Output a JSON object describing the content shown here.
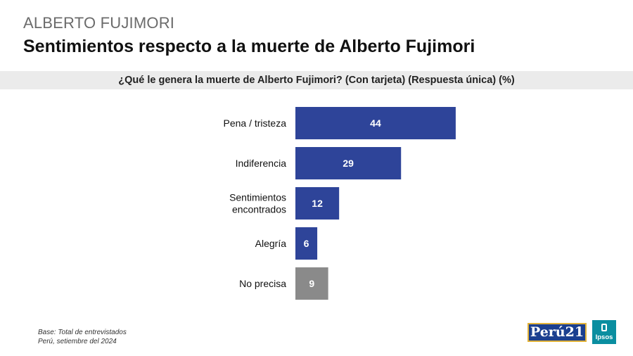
{
  "header": {
    "kicker": "ALBERTO FUJIMORI",
    "title": "Sentimientos respecto a la muerte de Alberto Fujimori",
    "question": "¿Qué le genera la muerte de Alberto Fujimori? (Con tarjeta) (Respuesta única) (%)"
  },
  "chart_data": {
    "type": "bar",
    "orientation": "horizontal",
    "title": "",
    "xlabel": "",
    "ylabel": "",
    "categories": [
      "Pena / tristeza",
      "Indiferencia",
      "Sentimientos encontrados",
      "Alegría",
      "No precisa"
    ],
    "values": [
      44,
      29,
      12,
      6,
      9
    ],
    "colors": [
      "#2e4499",
      "#2e4499",
      "#2e4499",
      "#2e4499",
      "#8a8a8a"
    ],
    "label_color": "#ffffff",
    "grid": false,
    "legend": "none"
  },
  "footnote": {
    "line1": "Base: Total de entrevistados",
    "line2": "Perú, setiembre del 2024"
  },
  "logos": {
    "peru21": "Perú21",
    "ipsos": "Ipsos"
  }
}
